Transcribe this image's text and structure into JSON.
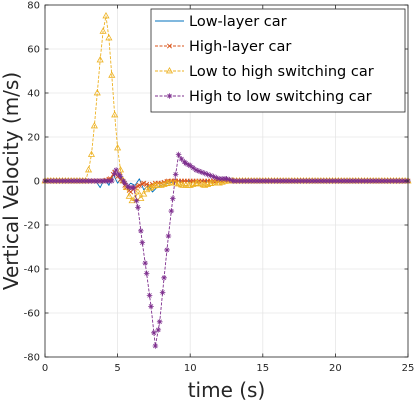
{
  "chart_data": {
    "type": "line",
    "title": "",
    "xlabel": "time (s)",
    "ylabel": "Vertical Velocity (m/s)",
    "xlim": [
      0,
      25
    ],
    "ylim": [
      -80,
      80
    ],
    "xticks": [
      0,
      5,
      10,
      15,
      20,
      25
    ],
    "yticks": [
      -80,
      -60,
      -40,
      -20,
      0,
      20,
      40,
      60,
      80
    ],
    "grid": true,
    "legend_position": "top-right",
    "series": [
      {
        "name": "Low-layer car",
        "color": "#0072BD",
        "marker": "none",
        "x": [
          0,
          3.5,
          3.8,
          4.1,
          4.4,
          4.7,
          5.0,
          5.3,
          5.6,
          5.9,
          6.2,
          6.5,
          6.8,
          7.1,
          7.4,
          7.7,
          8.0,
          8.5,
          9.0,
          10,
          25
        ],
        "y": [
          0,
          0,
          -3,
          1,
          -2,
          3,
          -1,
          2,
          -3,
          -1,
          -2,
          1,
          -4,
          -2,
          -5,
          -3,
          -2,
          -1,
          0,
          0,
          0
        ]
      },
      {
        "name": "High-layer car",
        "color": "#D95319",
        "marker": "x",
        "x": [
          0,
          4.0,
          4.5,
          4.8,
          5.0,
          5.3,
          5.6,
          5.9,
          6.2,
          6.5,
          6.8,
          7.2,
          7.6,
          8.0,
          8.5,
          9.0,
          10,
          25
        ],
        "y": [
          0,
          0,
          1,
          4,
          2,
          0,
          -3,
          -5,
          -3,
          -2,
          -1,
          -2,
          -1,
          -1,
          0,
          0,
          0,
          0
        ]
      },
      {
        "name": "Low to high switching car",
        "color": "#EDB120",
        "marker": "triangle",
        "x": [
          0,
          2.8,
          3.0,
          3.2,
          3.4,
          3.6,
          3.8,
          4.0,
          4.2,
          4.4,
          4.6,
          4.8,
          5.0,
          5.2,
          5.4,
          5.6,
          5.8,
          6.0,
          6.2,
          6.4,
          6.6,
          6.8,
          7.0,
          7.3,
          7.6,
          8.0,
          8.5,
          9.0,
          9.5,
          10.0,
          10.5,
          11.0,
          11.5,
          12.0,
          12.5,
          13.0,
          14.0,
          25
        ],
        "y": [
          0,
          0,
          5,
          12,
          25,
          40,
          55,
          68,
          75,
          65,
          48,
          30,
          15,
          5,
          0,
          -3,
          -7,
          -9,
          -8,
          -5,
          -8,
          -6,
          -4,
          -3,
          -2,
          -2,
          -1,
          -1,
          -2,
          -2,
          -1,
          -2,
          -1,
          -1,
          0,
          0,
          0,
          0
        ]
      },
      {
        "name": "High to low switching car",
        "color": "#7E2F8E",
        "marker": "star",
        "x": [
          0,
          4.6,
          4.9,
          5.2,
          5.5,
          5.8,
          6.1,
          6.4,
          6.7,
          7.0,
          7.3,
          7.6,
          7.9,
          8.2,
          8.5,
          8.8,
          9.0,
          9.2,
          9.4,
          9.7,
          10.0,
          10.4,
          10.8,
          11.2,
          11.6,
          12.0,
          12.5,
          13.0,
          14.0,
          25
        ],
        "y": [
          0,
          0,
          5,
          2,
          -1,
          -3,
          -3,
          -12,
          -28,
          -42,
          -57,
          -75,
          -64,
          -44,
          -25,
          -8,
          3,
          12,
          10,
          8,
          7,
          5,
          4,
          3,
          2,
          1,
          1,
          0,
          0,
          0
        ]
      }
    ]
  }
}
